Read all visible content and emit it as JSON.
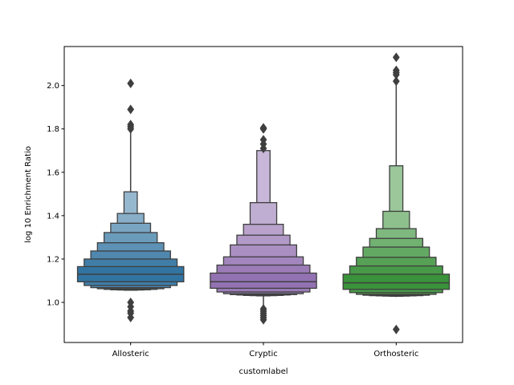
{
  "chart_data": {
    "type": "boxen",
    "xlabel": "customlabel",
    "ylabel": "log 10 Enrichment Ratio",
    "ylim": [
      0.815,
      2.18
    ],
    "yticks": [
      "1.0",
      "1.2",
      "1.4",
      "1.6",
      "1.8",
      "2.0"
    ],
    "categories": [
      "Allosteric",
      "Cryptic",
      "Orthosteric"
    ],
    "series": [
      {
        "category": "Allosteric",
        "color": "#3274a1",
        "median": 1.13,
        "letter_values": [
          [
            1.095,
            1.165
          ],
          [
            1.078,
            1.2
          ],
          [
            1.068,
            1.237
          ],
          [
            1.063,
            1.275
          ],
          [
            1.06,
            1.322
          ],
          [
            1.058,
            1.365
          ],
          [
            1.057,
            1.41
          ],
          [
            1.056,
            1.51
          ]
        ],
        "whisker": [
          1.055,
          1.79
        ],
        "outliers": [
          2.01,
          1.89,
          1.82,
          1.81,
          1.8,
          1.0,
          0.98,
          0.96,
          0.95,
          0.93
        ]
      },
      {
        "category": "Cryptic",
        "color": "#9372b2",
        "median": 1.095,
        "letter_values": [
          [
            1.065,
            1.135
          ],
          [
            1.048,
            1.172
          ],
          [
            1.04,
            1.21
          ],
          [
            1.036,
            1.265
          ],
          [
            1.034,
            1.31
          ],
          [
            1.032,
            1.36
          ],
          [
            1.031,
            1.46
          ],
          [
            1.03,
            1.7
          ]
        ],
        "whisker": [
          0.97,
          1.7
        ],
        "outliers": [
          1.805,
          1.8,
          1.75,
          1.73,
          1.71,
          0.97,
          0.96,
          0.95,
          0.94,
          0.93,
          0.92
        ]
      },
      {
        "category": "Orthosteric",
        "color": "#3a923a",
        "median": 1.09,
        "letter_values": [
          [
            1.06,
            1.13
          ],
          [
            1.045,
            1.168
          ],
          [
            1.037,
            1.208
          ],
          [
            1.033,
            1.255
          ],
          [
            1.031,
            1.295
          ],
          [
            1.03,
            1.34
          ],
          [
            1.029,
            1.42
          ],
          [
            1.028,
            1.63
          ]
        ],
        "whisker": [
          1.025,
          2.01
        ],
        "outliers": [
          2.13,
          2.07,
          2.06,
          2.05,
          2.02,
          0.875
        ]
      }
    ]
  }
}
